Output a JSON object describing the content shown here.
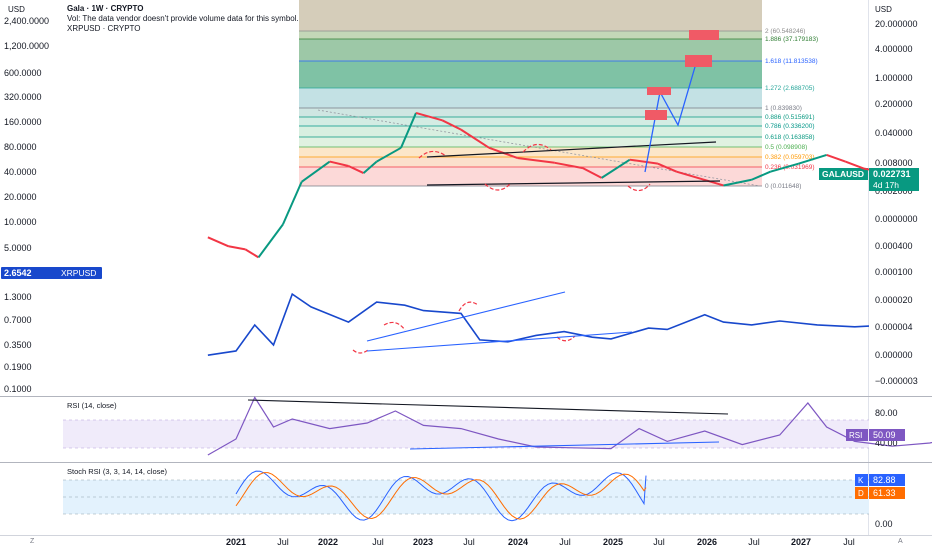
{
  "header": {
    "title": "Gala · 1W · CRYPTO",
    "volume_note": "Vol: The data vendor doesn't provide volume data for this symbol.",
    "overlay_symbol": "XRPUSD · CRYPTO"
  },
  "left_axis": {
    "currency": "USD",
    "labels": [
      "2,400.0000",
      "1,200.0000",
      "600.0000",
      "320.0000",
      "160.0000",
      "80.0000",
      "40.0000",
      "20.0000",
      "10.0000",
      "5.0000",
      "1.3000",
      "0.7000",
      "0.3500",
      "0.1900",
      "0.1000"
    ],
    "badge_value": "2.6542",
    "badge_symbol": "XRPUSD"
  },
  "right_axis": {
    "currency": "USD",
    "labels": [
      "20.000000",
      "4.000000",
      "1.000000",
      "0.200000",
      "0.040000",
      "0.008000",
      "0.002000",
      "0.000400",
      "0.000100",
      "0.000020",
      "0.000004",
      "0.000000",
      "−0.000003"
    ],
    "badge_symbol": "GALAUSD",
    "badge_value": "0.022731",
    "badge_countdown": "4d 17h",
    "overlap_label": "0.0000000"
  },
  "fib_levels": [
    {
      "ratio": "2",
      "value": "(60.548246)",
      "color": "#8c8c8c"
    },
    {
      "ratio": "1.886",
      "value": "(37.179183)",
      "color": "#2e7d32"
    },
    {
      "ratio": "1.618",
      "value": "(11.813538)",
      "color": "#2962ff"
    },
    {
      "ratio": "1.272",
      "value": "(2.688705)",
      "color": "#26a69a"
    },
    {
      "ratio": "1",
      "value": "(0.839830)",
      "color": "#787b86"
    },
    {
      "ratio": "0.886",
      "value": "(0.515691)",
      "color": "#089981"
    },
    {
      "ratio": "0.786",
      "value": "(0.336200)",
      "color": "#009688"
    },
    {
      "ratio": "0.618",
      "value": "(0.163858)",
      "color": "#089981"
    },
    {
      "ratio": "0.5",
      "value": "(0.098908)",
      "color": "#4caf50"
    },
    {
      "ratio": "0.382",
      "value": "(0.059703)",
      "color": "#ff9800"
    },
    {
      "ratio": "0.236",
      "value": "(0.031969)",
      "color": "#f23645"
    },
    {
      "ratio": "0",
      "value": "(0.011648)",
      "color": "#787b86"
    }
  ],
  "rsi": {
    "title": "RSI (14, close)",
    "badge_label": "RSI",
    "badge_value": "50.09",
    "axis_labels": [
      "80.00",
      "40.00"
    ]
  },
  "stoch": {
    "title": "Stoch RSI (3, 3, 14, 14, close)",
    "k_label": "K",
    "k_value": "82.88",
    "d_label": "D",
    "d_value": "61.33",
    "axis_labels": [
      "0.00"
    ]
  },
  "time_axis": [
    "2021",
    "Jul",
    "2022",
    "Jul",
    "2023",
    "Jul",
    "2024",
    "Jul",
    "2025",
    "Jul",
    "2026",
    "Jul",
    "2027",
    "Jul"
  ],
  "colors": {
    "price_up": "#089981",
    "price_down": "#f23645",
    "xrp_line": "#1848cc",
    "trend_blue": "#2962ff",
    "rsi_line": "#7e57c2",
    "stoch_k": "#2962ff",
    "stoch_d": "#ff6d00",
    "fib_zone_top": "#c9c0a9",
    "badge_green": "#089981",
    "badge_blue": "#1848cc"
  },
  "chart_data": [
    {
      "type": "line",
      "name": "GALAUSD weekly (log scale)",
      "series": [
        {
          "name": "GALAUSD",
          "x": [
            2020.85,
            2020.96,
            2021.05,
            2021.12,
            2021.25,
            2021.35,
            2021.5,
            2021.6,
            2021.68,
            2021.75,
            2021.88,
            2021.96,
            2022.1,
            2022.2,
            2022.35,
            2022.5,
            2022.7,
            2022.85,
            2022.95,
            2023.1,
            2023.25,
            2023.35,
            2023.6,
            2023.75,
            2023.85,
            2024.0,
            2024.15,
            2024.25,
            2024.35,
            2024.5,
            2024.7,
            2024.85,
            2024.95,
            2025.05,
            2025.15,
            2025.25,
            2025.3
          ],
          "values": [
            0.0011,
            0.0007,
            0.0006,
            0.0004,
            0.0021,
            0.018,
            0.05,
            0.04,
            0.028,
            0.05,
            0.1,
            0.58,
            0.4,
            0.25,
            0.1,
            0.06,
            0.047,
            0.036,
            0.022,
            0.055,
            0.045,
            0.03,
            0.015,
            0.02,
            0.03,
            0.045,
            0.07,
            0.05,
            0.035,
            0.027,
            0.02,
            0.022,
            0.055,
            0.033,
            0.024,
            0.016,
            0.0227
          ]
        }
      ],
      "y_scale": "log"
    },
    {
      "type": "line",
      "name": "XRPUSD overlay",
      "series": [
        {
          "name": "XRPUSD",
          "x": [
            2020.85,
            2021.0,
            2021.1,
            2021.2,
            2021.3,
            2021.4,
            2021.6,
            2021.75,
            2021.9,
            2022.0,
            2022.2,
            2022.3,
            2022.45,
            2022.6,
            2022.75,
            2022.9,
            2023.0,
            2023.2,
            2023.3,
            2023.5,
            2023.6,
            2023.75,
            2023.9,
            2024.1,
            2024.3,
            2024.5,
            2024.7,
            2024.8,
            2024.87,
            2024.95,
            2025.1,
            2025.2,
            2025.28
          ],
          "values": [
            0.22,
            0.25,
            0.55,
            0.3,
            1.4,
            0.95,
            0.6,
            1.1,
            1.0,
            0.85,
            0.78,
            0.35,
            0.33,
            0.4,
            0.45,
            0.38,
            0.36,
            0.5,
            0.48,
            0.75,
            0.6,
            0.55,
            0.62,
            0.55,
            0.52,
            0.55,
            0.6,
            1.7,
            2.2,
            2.5,
            3.0,
            2.2,
            2.6542
          ]
        }
      ],
      "y_scale": "log"
    },
    {
      "type": "line",
      "name": "RSI (14, close)",
      "series": [
        {
          "name": "RSI",
          "x": [
            2020.85,
            2021.0,
            2021.1,
            2021.2,
            2021.3,
            2021.5,
            2021.7,
            2021.85,
            2022.0,
            2022.2,
            2022.4,
            2022.6,
            2022.8,
            2023.0,
            2023.15,
            2023.3,
            2023.5,
            2023.7,
            2023.9,
            2024.05,
            2024.15,
            2024.3,
            2024.5,
            2024.7,
            2024.85,
            2024.95,
            2025.1,
            2025.2,
            2025.3
          ],
          "values": [
            25,
            45,
            97,
            60,
            70,
            58,
            65,
            80,
            62,
            58,
            45,
            35,
            34,
            33,
            58,
            42,
            55,
            38,
            50,
            90,
            60,
            42,
            36,
            40,
            48,
            62,
            40,
            36,
            50.09
          ]
        }
      ],
      "ylim": [
        0,
        100
      ]
    },
    {
      "type": "line",
      "name": "Stoch RSI (3, 3, 14, 14, close)",
      "series": [
        {
          "name": "K",
          "x": [
            2025.3
          ],
          "values": [
            82.88
          ]
        },
        {
          "name": "D",
          "x": [
            2025.3
          ],
          "values": [
            61.33
          ]
        }
      ],
      "ylim": [
        0,
        100
      ]
    }
  ]
}
